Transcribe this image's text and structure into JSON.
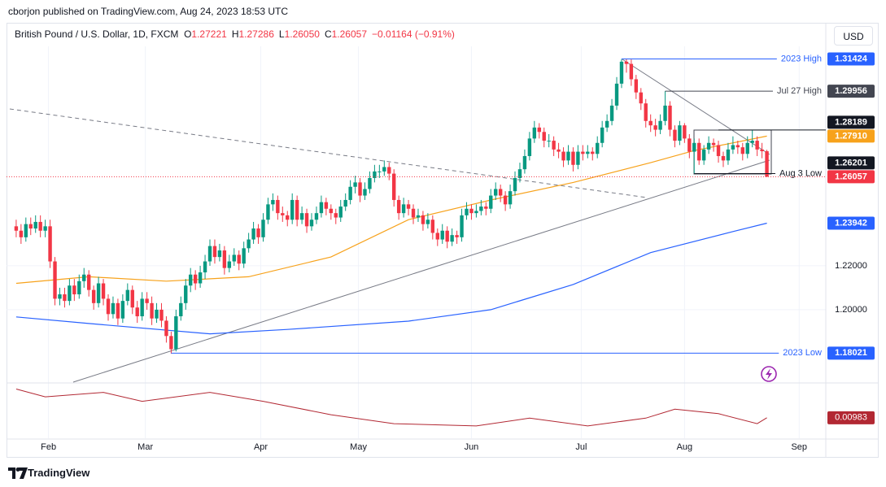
{
  "chart_data": {
    "type": "candlestick",
    "publisher": "cborjon published on TradingView.com, Aug 24, 2023 18:53 UTC",
    "symbol": "British Pound / U.S. Dollar, 1D, FXCM",
    "ohlc_legend": [
      {
        "key": "O",
        "value": "1.27221"
      },
      {
        "key": "H",
        "value": "1.27286"
      },
      {
        "key": "L",
        "value": "1.26050"
      },
      {
        "key": "C",
        "value": "1.26057"
      }
    ],
    "change": "−0.01164 (−0.91%)",
    "currency": "USD",
    "brand": "TradingView",
    "up_color": "#089981",
    "down_color": "#f23645",
    "grid": true,
    "xlim": [
      -2,
      167.17
    ],
    "xticks": [
      {
        "value": 6.67,
        "label": "Feb"
      },
      {
        "value": 26.67,
        "label": "Mar"
      },
      {
        "value": 50.5,
        "label": "Apr"
      },
      {
        "value": 70.67,
        "label": "May"
      },
      {
        "value": 94,
        "label": "Jun"
      },
      {
        "value": 116.67,
        "label": "Jul"
      },
      {
        "value": 138,
        "label": "Aug"
      },
      {
        "value": 161.67,
        "label": "Sep"
      }
    ],
    "ylim": [
      1.167,
      1.32
    ],
    "yticks": [
      {
        "value": 1.2,
        "label": "1.20000"
      },
      {
        "value": 1.22,
        "label": "1.22000"
      }
    ],
    "candles": [
      [
        1.238,
        1.241,
        1.233,
        1.236
      ],
      [
        1.236,
        1.239,
        1.23,
        1.233
      ],
      [
        1.233,
        1.242,
        1.231,
        1.239
      ],
      [
        1.239,
        1.242,
        1.234,
        1.237
      ],
      [
        1.237,
        1.243,
        1.235,
        1.24
      ],
      [
        1.24,
        1.243,
        1.233,
        1.236
      ],
      [
        1.236,
        1.241,
        1.233,
        1.238
      ],
      [
        1.238,
        1.241,
        1.219,
        1.222
      ],
      [
        1.222,
        1.224,
        1.202,
        1.205
      ],
      [
        1.205,
        1.21,
        1.202,
        1.207
      ],
      [
        1.207,
        1.21,
        1.201,
        1.204
      ],
      [
        1.204,
        1.214,
        1.202,
        1.211
      ],
      [
        1.211,
        1.214,
        1.204,
        1.207
      ],
      [
        1.207,
        1.216,
        1.205,
        1.213
      ],
      [
        1.213,
        1.219,
        1.21,
        1.216
      ],
      [
        1.216,
        1.218,
        1.206,
        1.209
      ],
      [
        1.209,
        1.211,
        1.2,
        1.203
      ],
      [
        1.203,
        1.215,
        1.201,
        1.212
      ],
      [
        1.212,
        1.214,
        1.202,
        1.205
      ],
      [
        1.205,
        1.207,
        1.195,
        1.198
      ],
      [
        1.198,
        1.206,
        1.196,
        1.203
      ],
      [
        1.203,
        1.205,
        1.193,
        1.196
      ],
      [
        1.196,
        1.207,
        1.194,
        1.204
      ],
      [
        1.204,
        1.212,
        1.202,
        1.209
      ],
      [
        1.209,
        1.211,
        1.198,
        1.201
      ],
      [
        1.201,
        1.204,
        1.194,
        1.197
      ],
      [
        1.197,
        1.208,
        1.195,
        1.205
      ],
      [
        1.205,
        1.208,
        1.2,
        1.203
      ],
      [
        1.203,
        1.206,
        1.193,
        1.196
      ],
      [
        1.196,
        1.203,
        1.194,
        1.2
      ],
      [
        1.2,
        1.203,
        1.192,
        1.195
      ],
      [
        1.195,
        1.197,
        1.185,
        1.188
      ],
      [
        1.188,
        1.19,
        1.18,
        1.182
      ],
      [
        1.182,
        1.2,
        1.181,
        1.197
      ],
      [
        1.197,
        1.206,
        1.195,
        1.203
      ],
      [
        1.203,
        1.214,
        1.2,
        1.211
      ],
      [
        1.211,
        1.219,
        1.208,
        1.216
      ],
      [
        1.216,
        1.218,
        1.209,
        1.212
      ],
      [
        1.212,
        1.22,
        1.21,
        1.217
      ],
      [
        1.217,
        1.225,
        1.214,
        1.222
      ],
      [
        1.222,
        1.232,
        1.22,
        1.229
      ],
      [
        1.229,
        1.232,
        1.221,
        1.224
      ],
      [
        1.224,
        1.23,
        1.222,
        1.227
      ],
      [
        1.227,
        1.229,
        1.216,
        1.219
      ],
      [
        1.219,
        1.225,
        1.217,
        1.222
      ],
      [
        1.222,
        1.228,
        1.22,
        1.225
      ],
      [
        1.225,
        1.227,
        1.218,
        1.221
      ],
      [
        1.221,
        1.231,
        1.219,
        1.228
      ],
      [
        1.228,
        1.235,
        1.226,
        1.232
      ],
      [
        1.232,
        1.24,
        1.23,
        1.237
      ],
      [
        1.237,
        1.239,
        1.23,
        1.233
      ],
      [
        1.233,
        1.244,
        1.231,
        1.241
      ],
      [
        1.241,
        1.251,
        1.239,
        1.248
      ],
      [
        1.248,
        1.253,
        1.245,
        1.25
      ],
      [
        1.25,
        1.252,
        1.241,
        1.244
      ],
      [
        1.244,
        1.247,
        1.24,
        1.243
      ],
      [
        1.243,
        1.245,
        1.238,
        1.241
      ],
      [
        1.241,
        1.253,
        1.239,
        1.25
      ],
      [
        1.25,
        1.252,
        1.238,
        1.241
      ],
      [
        1.241,
        1.247,
        1.239,
        1.244
      ],
      [
        1.244,
        1.246,
        1.235,
        1.238
      ],
      [
        1.238,
        1.244,
        1.236,
        1.241
      ],
      [
        1.241,
        1.247,
        1.239,
        1.244
      ],
      [
        1.244,
        1.252,
        1.242,
        1.249
      ],
      [
        1.249,
        1.251,
        1.243,
        1.246
      ],
      [
        1.246,
        1.248,
        1.241,
        1.244
      ],
      [
        1.244,
        1.246,
        1.239,
        1.242
      ],
      [
        1.242,
        1.25,
        1.24,
        1.247
      ],
      [
        1.247,
        1.253,
        1.245,
        1.25
      ],
      [
        1.25,
        1.259,
        1.248,
        1.256
      ],
      [
        1.256,
        1.261,
        1.253,
        1.258
      ],
      [
        1.258,
        1.26,
        1.249,
        1.252
      ],
      [
        1.252,
        1.258,
        1.25,
        1.255
      ],
      [
        1.255,
        1.263,
        1.253,
        1.26
      ],
      [
        1.26,
        1.266,
        1.258,
        1.263
      ],
      [
        1.263,
        1.266,
        1.26,
        1.263
      ],
      [
        1.263,
        1.268,
        1.261,
        1.265
      ],
      [
        1.265,
        1.267,
        1.259,
        1.262
      ],
      [
        1.262,
        1.264,
        1.247,
        1.25
      ],
      [
        1.25,
        1.252,
        1.241,
        1.244
      ],
      [
        1.244,
        1.251,
        1.242,
        1.248
      ],
      [
        1.248,
        1.25,
        1.243,
        1.246
      ],
      [
        1.246,
        1.248,
        1.239,
        1.242
      ],
      [
        1.242,
        1.246,
        1.24,
        1.243
      ],
      [
        1.243,
        1.245,
        1.236,
        1.239
      ],
      [
        1.239,
        1.244,
        1.237,
        1.241
      ],
      [
        1.241,
        1.243,
        1.232,
        1.235
      ],
      [
        1.235,
        1.237,
        1.229,
        1.232
      ],
      [
        1.232,
        1.239,
        1.23,
        1.236
      ],
      [
        1.236,
        1.238,
        1.228,
        1.231
      ],
      [
        1.231,
        1.237,
        1.229,
        1.234
      ],
      [
        1.234,
        1.236,
        1.23,
        1.233
      ],
      [
        1.233,
        1.246,
        1.231,
        1.243
      ],
      [
        1.243,
        1.249,
        1.241,
        1.246
      ],
      [
        1.246,
        1.248,
        1.241,
        1.244
      ],
      [
        1.244,
        1.248,
        1.242,
        1.245
      ],
      [
        1.245,
        1.25,
        1.243,
        1.247
      ],
      [
        1.247,
        1.249,
        1.243,
        1.246
      ],
      [
        1.246,
        1.255,
        1.244,
        1.252
      ],
      [
        1.252,
        1.258,
        1.25,
        1.255
      ],
      [
        1.255,
        1.257,
        1.249,
        1.252
      ],
      [
        1.252,
        1.254,
        1.245,
        1.248
      ],
      [
        1.248,
        1.257,
        1.246,
        1.254
      ],
      [
        1.254,
        1.263,
        1.252,
        1.26
      ],
      [
        1.26,
        1.267,
        1.258,
        1.264
      ],
      [
        1.264,
        1.273,
        1.262,
        1.27
      ],
      [
        1.27,
        1.281,
        1.268,
        1.278
      ],
      [
        1.278,
        1.286,
        1.276,
        1.283
      ],
      [
        1.283,
        1.285,
        1.278,
        1.281
      ],
      [
        1.281,
        1.283,
        1.274,
        1.277
      ],
      [
        1.277,
        1.28,
        1.274,
        1.277
      ],
      [
        1.277,
        1.279,
        1.27,
        1.273
      ],
      [
        1.273,
        1.276,
        1.269,
        1.272
      ],
      [
        1.272,
        1.274,
        1.265,
        1.268
      ],
      [
        1.268,
        1.275,
        1.266,
        1.272
      ],
      [
        1.272,
        1.274,
        1.263,
        1.266
      ],
      [
        1.266,
        1.275,
        1.264,
        1.272
      ],
      [
        1.272,
        1.275,
        1.268,
        1.271
      ],
      [
        1.271,
        1.275,
        1.269,
        1.272
      ],
      [
        1.272,
        1.274,
        1.268,
        1.271
      ],
      [
        1.271,
        1.279,
        1.269,
        1.276
      ],
      [
        1.276,
        1.286,
        1.274,
        1.283
      ],
      [
        1.283,
        1.289,
        1.281,
        1.286
      ],
      [
        1.286,
        1.296,
        1.284,
        1.293
      ],
      [
        1.293,
        1.306,
        1.291,
        1.303
      ],
      [
        1.303,
        1.3142,
        1.301,
        1.313
      ],
      [
        1.313,
        1.3142,
        1.308,
        1.312
      ],
      [
        1.312,
        1.314,
        1.302,
        1.305
      ],
      [
        1.305,
        1.307,
        1.296,
        1.299
      ],
      [
        1.299,
        1.301,
        1.291,
        1.294
      ],
      [
        1.294,
        1.296,
        1.283,
        1.286
      ],
      [
        1.286,
        1.289,
        1.281,
        1.284
      ],
      [
        1.284,
        1.287,
        1.279,
        1.282
      ],
      [
        1.282,
        1.289,
        1.28,
        1.286
      ],
      [
        1.286,
        1.2996,
        1.284,
        1.293
      ],
      [
        1.293,
        1.295,
        1.279,
        1.282
      ],
      [
        1.282,
        1.284,
        1.274,
        1.277
      ],
      [
        1.277,
        1.286,
        1.275,
        1.284
      ],
      [
        1.284,
        1.285,
        1.276,
        1.278
      ],
      [
        1.278,
        1.28,
        1.269,
        1.272
      ],
      [
        1.272,
        1.278,
        1.262,
        1.276
      ],
      [
        1.276,
        1.278,
        1.266,
        1.268
      ],
      [
        1.268,
        1.275,
        1.266,
        1.273
      ],
      [
        1.273,
        1.279,
        1.271,
        1.276
      ],
      [
        1.276,
        1.278,
        1.272,
        1.275
      ],
      [
        1.275,
        1.277,
        1.267,
        1.27
      ],
      [
        1.27,
        1.272,
        1.265,
        1.268
      ],
      [
        1.268,
        1.276,
        1.266,
        1.273
      ],
      [
        1.273,
        1.279,
        1.271,
        1.275
      ],
      [
        1.275,
        1.277,
        1.271,
        1.274
      ],
      [
        1.274,
        1.276,
        1.268,
        1.271
      ],
      [
        1.271,
        1.279,
        1.269,
        1.276
      ],
      [
        1.276,
        1.2819,
        1.274,
        1.277
      ],
      [
        1.277,
        1.279,
        1.27,
        1.273
      ],
      [
        1.273,
        1.276,
        1.269,
        1.27221
      ],
      [
        1.27221,
        1.27286,
        1.2605,
        1.26057
      ]
    ],
    "lines": [
      {
        "color": "#f7a21b",
        "x": [
          0,
          15,
          31,
          48,
          65,
          81,
          98,
          115,
          131,
          140,
          155
        ],
        "values": [
          1.212,
          1.215,
          1.213,
          1.215,
          1.224,
          1.241,
          1.25,
          1.258,
          1.267,
          1.2725,
          1.2791
        ]
      },
      {
        "color": "#2962ff",
        "x": [
          0,
          15,
          40,
          56,
          81,
          98,
          115,
          131,
          148,
          155
        ],
        "values": [
          1.1967,
          1.1937,
          1.189,
          1.191,
          1.1948,
          1.2,
          1.2115,
          1.226,
          1.2356,
          1.23942
        ]
      }
    ],
    "levels": [
      {
        "name": "2023 High",
        "value": 1.31424,
        "color": "#2962ff",
        "from": 125
      },
      {
        "name": "Jul 27 High",
        "value": 1.29956,
        "color": "#434651",
        "from": 134
      },
      {
        "value": 1.28189,
        "color": "#131722",
        "from": 145
      },
      {
        "value": 1.2791,
        "value_label": "1.27910",
        "color": "#f7a21b"
      },
      {
        "name": "Aug 3 Low",
        "value": 1.26201,
        "color": "#131722",
        "from": 140
      },
      {
        "value": 1.26057,
        "color": "#f23645",
        "from": -2,
        "dotted": true
      },
      {
        "value": 1.23942,
        "color": "#2962ff"
      },
      {
        "name": "2023 Low",
        "value": 1.18021,
        "color": "#2962ff",
        "from": 32
      }
    ],
    "indicator": {
      "color": "#b22833",
      "ylim": [
        0.008,
        0.0128
      ],
      "x": [
        0,
        6,
        18,
        26,
        40,
        51,
        65,
        78,
        95,
        106,
        118,
        130,
        136,
        145,
        153,
        155
      ],
      "values": [
        0.0124,
        0.0117,
        0.0121,
        0.0113,
        0.0121,
        0.0113,
        0.0101,
        0.0093,
        0.0091,
        0.0098,
        0.0091,
        0.0098,
        0.0106,
        0.0102,
        0.0093,
        0.00983
      ]
    }
  }
}
